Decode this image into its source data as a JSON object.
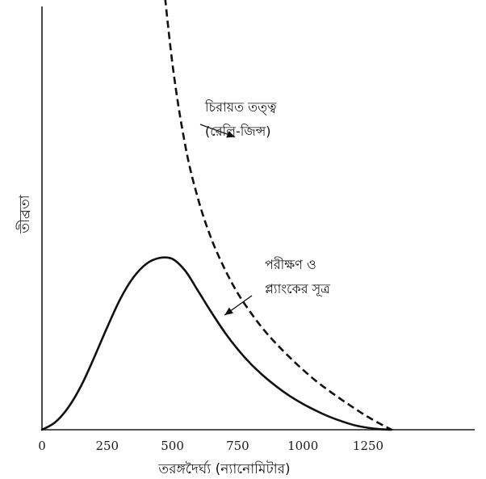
{
  "chart_data": {
    "type": "line",
    "xlabel": "তরঙ্গদৈর্ঘ্য (ন্যানোমিটার)",
    "ylabel": "তীব্রতা",
    "xlim": [
      0,
      1700
    ],
    "x_ticks": [
      "0",
      "250",
      "500",
      "750",
      "1000",
      "1250"
    ],
    "x_tick_values": [
      0,
      250,
      500,
      750,
      1000,
      1250
    ],
    "grid": false,
    "series": [
      {
        "name": "চিরায়ত তত্ত্ব (রেলি-জিন্স)",
        "style": "dashed",
        "x": [
          450,
          500,
          550,
          600,
          650,
          700,
          750,
          800,
          850,
          900,
          950,
          1000,
          1050,
          1100,
          1150,
          1200,
          1250,
          1300,
          1340
        ],
        "y": [
          1.0,
          0.75,
          0.58,
          0.47,
          0.39,
          0.33,
          0.28,
          0.24,
          0.205,
          0.175,
          0.148,
          0.123,
          0.1,
          0.08,
          0.061,
          0.043,
          0.026,
          0.011,
          0.0
        ]
      },
      {
        "name": "পরীক্ষণ ও প্ল্যাংকের সূত্র",
        "style": "solid",
        "x": [
          0,
          50,
          100,
          150,
          200,
          250,
          300,
          350,
          400,
          450,
          500,
          550,
          600,
          650,
          700,
          750,
          800,
          850,
          900,
          950,
          1000,
          1050,
          1100,
          1150,
          1200,
          1250,
          1300,
          1340
        ],
        "y": [
          0.0,
          0.015,
          0.045,
          0.09,
          0.148,
          0.21,
          0.268,
          0.312,
          0.34,
          0.352,
          0.35,
          0.325,
          0.283,
          0.24,
          0.2,
          0.165,
          0.135,
          0.11,
          0.088,
          0.069,
          0.053,
          0.039,
          0.027,
          0.017,
          0.009,
          0.004,
          0.001,
          0.0
        ]
      }
    ],
    "annotations": [
      {
        "lines": [
          "চিরায়ত তত্ত্ব",
          "(রেলি-জিন্স)"
        ],
        "target_series": 0,
        "arrow_to": [
          740,
          0.6
        ]
      },
      {
        "lines": [
          "পরীক্ষণ ও",
          "প্ল্যাংকের সূত্র"
        ],
        "target_series": 1,
        "arrow_to": [
          700,
          0.235
        ]
      }
    ]
  }
}
